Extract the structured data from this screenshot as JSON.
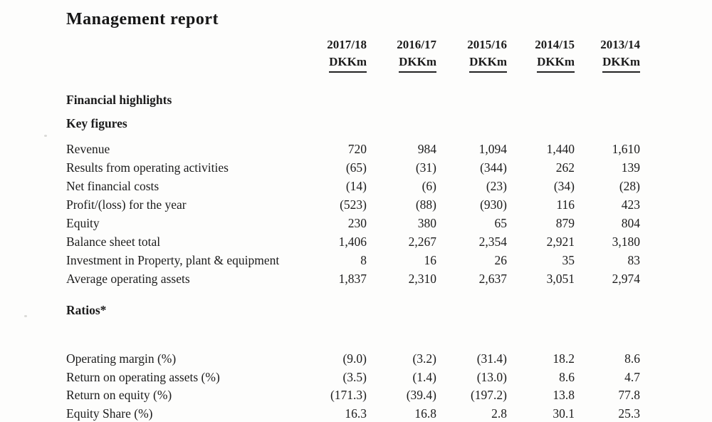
{
  "title": "Management report",
  "table": {
    "columns": [
      {
        "year": "2017/18",
        "unit": "DKKm"
      },
      {
        "year": "2016/17",
        "unit": "DKKm"
      },
      {
        "year": "2015/16",
        "unit": "DKKm"
      },
      {
        "year": "2014/15",
        "unit": "DKKm"
      },
      {
        "year": "2013/14",
        "unit": "DKKm"
      }
    ],
    "section_financial_highlights": "Financial highlights",
    "key_figures": {
      "heading": "Key figures",
      "rows": [
        {
          "label": "Revenue",
          "values": [
            "720",
            "984",
            "1,094",
            "1,440",
            "1,610"
          ]
        },
        {
          "label": "Results from operating activities",
          "values": [
            "(65)",
            "(31)",
            "(344)",
            "262",
            "139"
          ]
        },
        {
          "label": "Net financial costs",
          "values": [
            "(14)",
            "(6)",
            "(23)",
            "(34)",
            "(28)"
          ]
        },
        {
          "label": "Profit/(loss) for the year",
          "values": [
            "(523)",
            "(88)",
            "(930)",
            "116",
            "423"
          ]
        },
        {
          "label": "Equity",
          "values": [
            "230",
            "380",
            "65",
            "879",
            "804"
          ]
        },
        {
          "label": "Balance sheet total",
          "values": [
            "1,406",
            "2,267",
            "2,354",
            "2,921",
            "3,180"
          ]
        },
        {
          "label": "Investment in Property, plant & equipment",
          "values": [
            "8",
            "16",
            "26",
            "35",
            "83"
          ]
        },
        {
          "label": "Average operating assets",
          "values": [
            "1,837",
            "2,310",
            "2,637",
            "3,051",
            "2,974"
          ]
        }
      ]
    },
    "ratios": {
      "heading": "Ratios*",
      "rows": [
        {
          "label": "Operating margin (%)",
          "values": [
            "(9.0)",
            "(3.2)",
            "(31.4)",
            "18.2",
            "8.6"
          ]
        },
        {
          "label": "Return on operating assets (%)",
          "values": [
            "(3.5)",
            "(1.4)",
            "(13.0)",
            "8.6",
            "4.7"
          ]
        },
        {
          "label": "Return on equity (%)",
          "values": [
            "(171.3)",
            "(39.4)",
            "(197.2)",
            "13.8",
            "77.8"
          ]
        },
        {
          "label": "Equity Share (%)",
          "values": [
            "16.3",
            "16.8",
            "2.8",
            "30.1",
            "25.3"
          ]
        }
      ]
    }
  }
}
